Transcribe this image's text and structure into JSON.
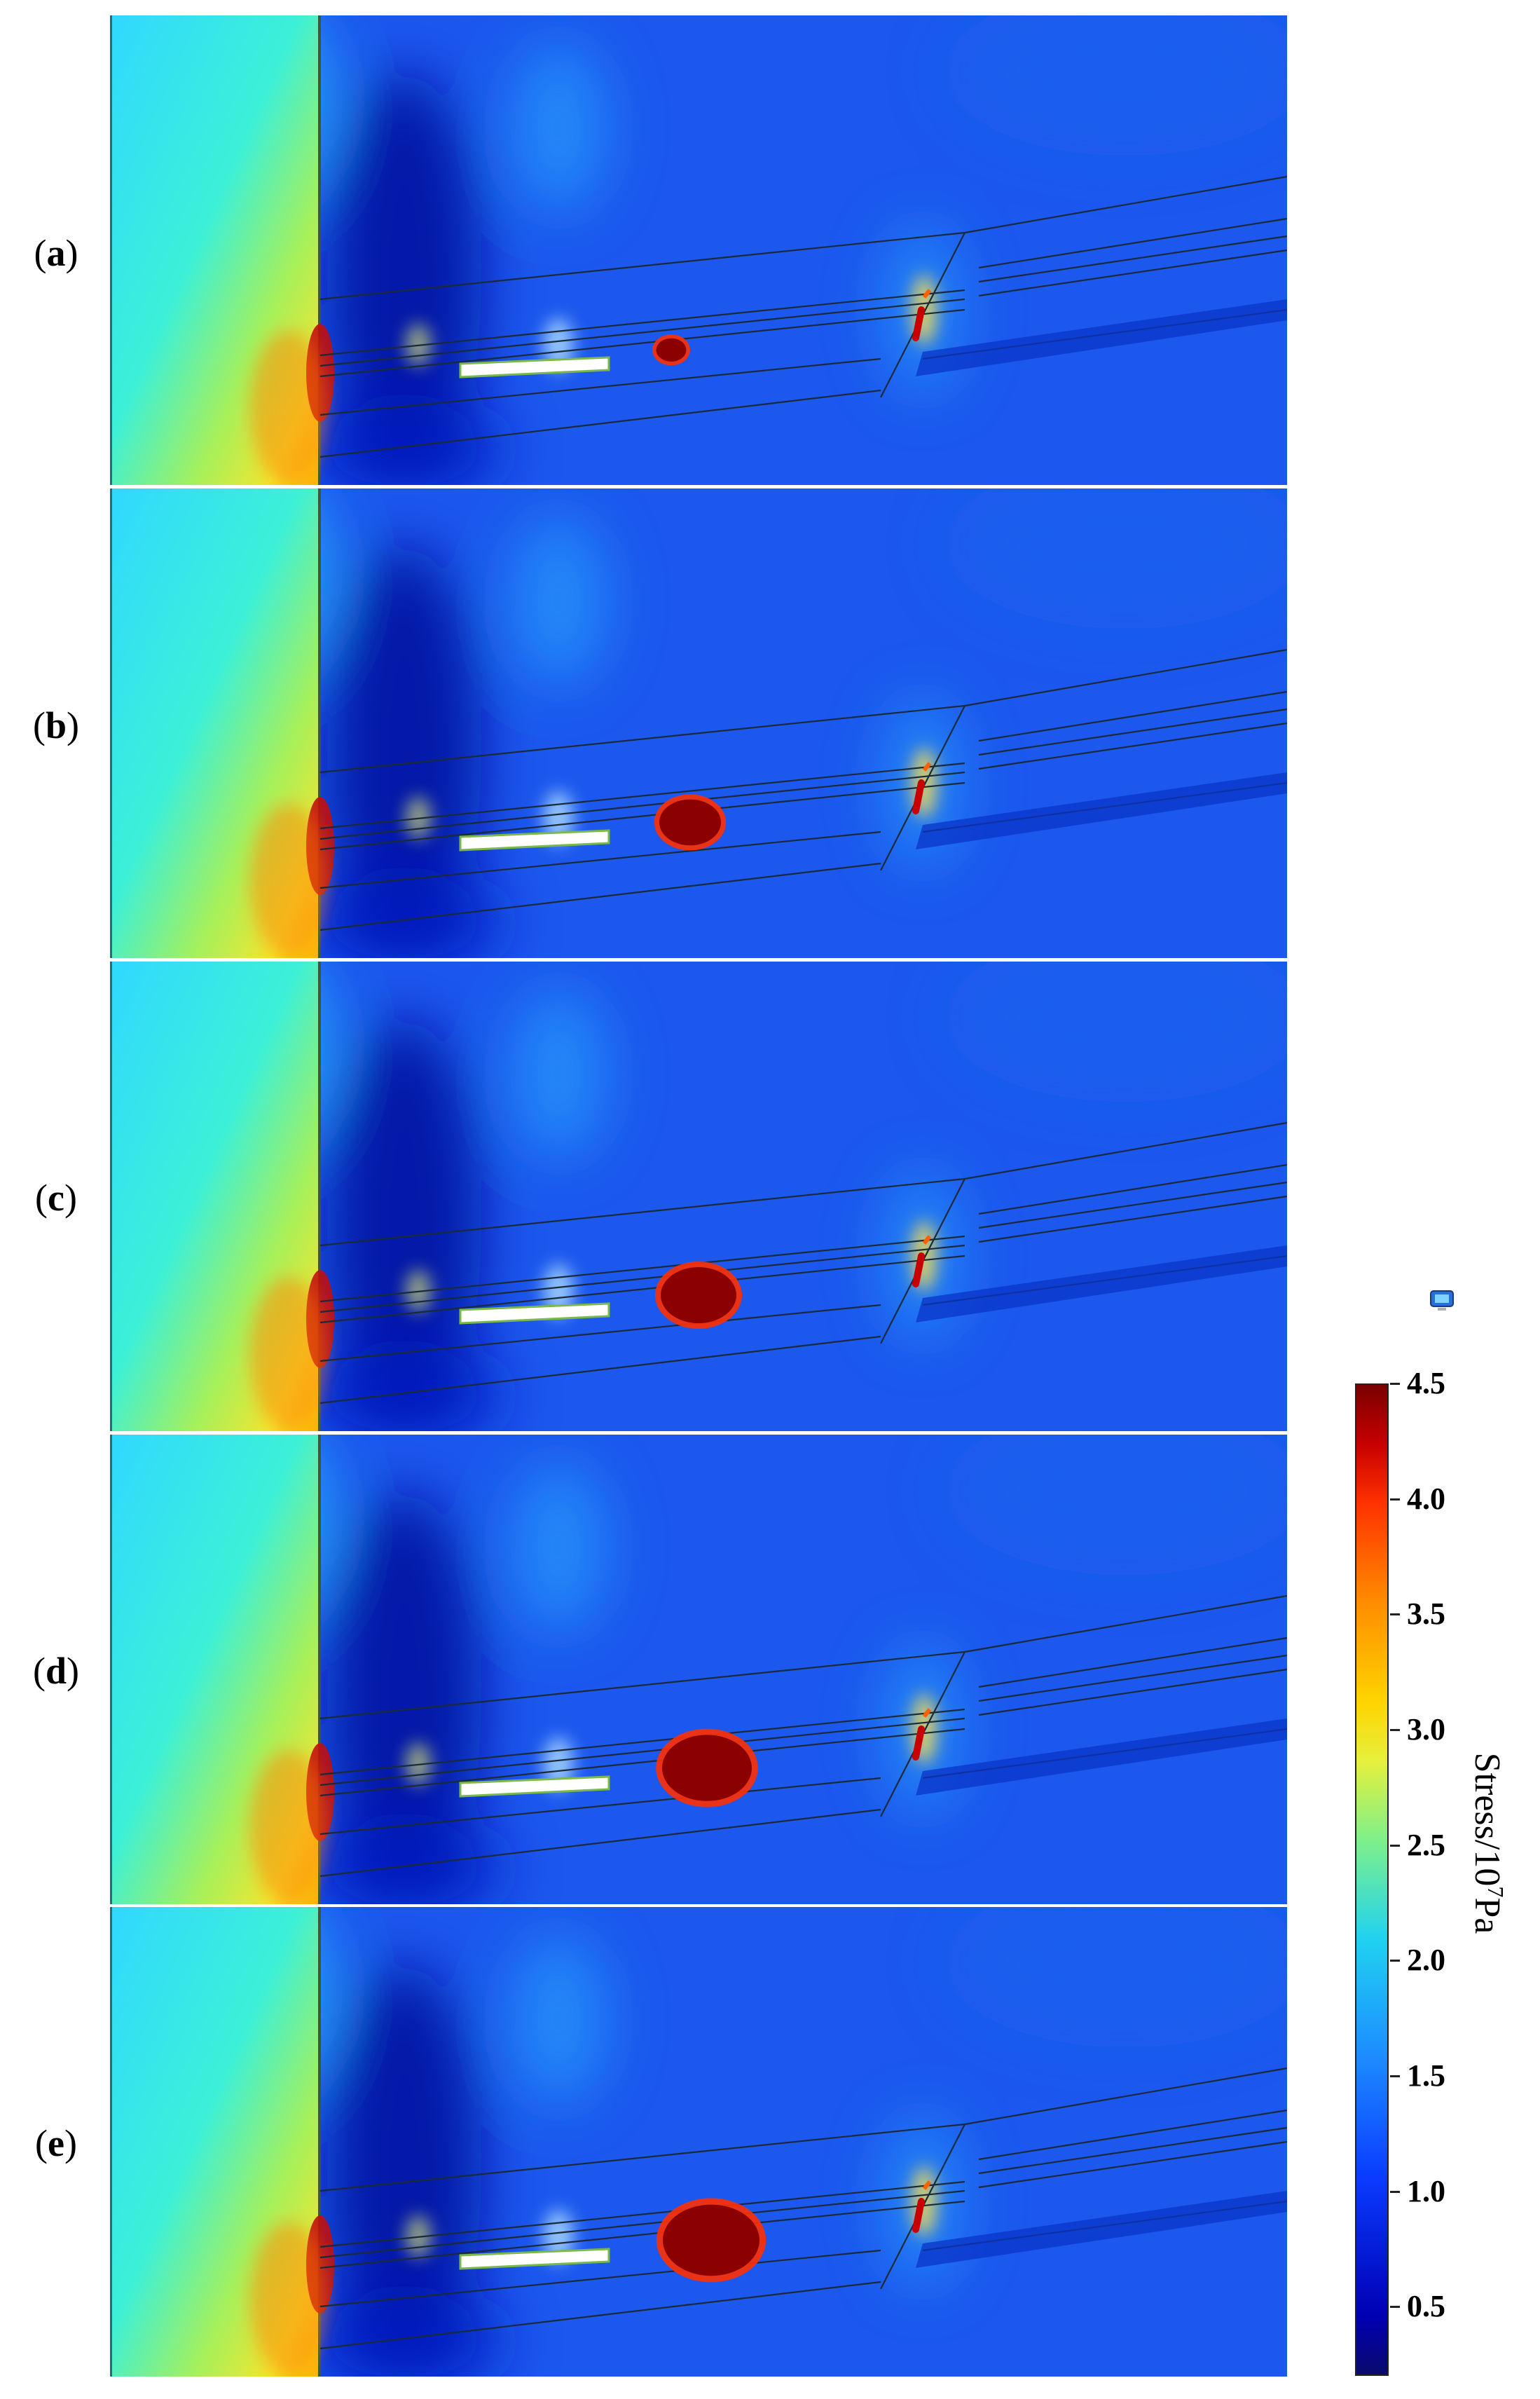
{
  "panels": [
    {
      "label": "a",
      "void_scale": 0.35
    },
    {
      "label": "b",
      "void_scale": 0.8
    },
    {
      "label": "c",
      "void_scale": 1.0
    },
    {
      "label": "d",
      "void_scale": 1.2
    },
    {
      "label": "e",
      "void_scale": 1.3
    }
  ],
  "colorbar": {
    "title_main": "Stress/10",
    "title_exp": "7",
    "title_unit": "Pa",
    "min": 0.2,
    "max": 4.5,
    "ticks": [
      "4.5",
      "4.0",
      "3.5",
      "3.0",
      "2.5",
      "2.0",
      "1.5",
      "1.0",
      "0.5"
    ]
  },
  "colors": {
    "background_field": "#1c58ee",
    "high_stress": "#8b0000",
    "low_stress": "#000a9c",
    "coal_pillar": "#30f0ff"
  },
  "icons": {
    "corner": "comsol-toolbar-icon"
  }
}
